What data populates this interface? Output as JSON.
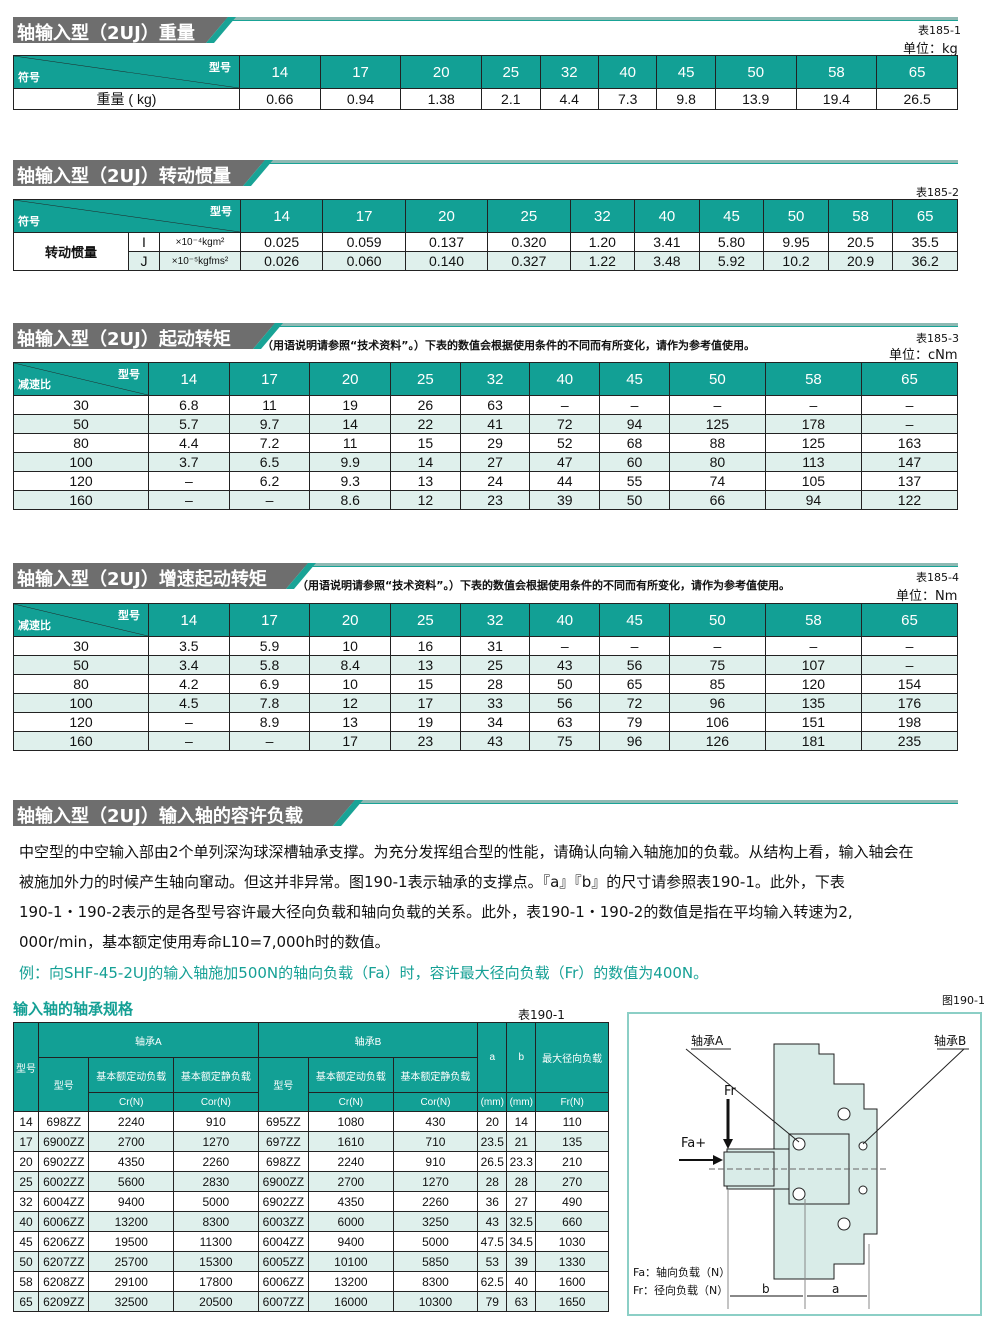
{
  "colors": {
    "accent": "#12a095",
    "header_gray": "#6e6e6e",
    "stripe": "#dff0ec"
  },
  "models": [
    "14",
    "17",
    "20",
    "25",
    "32",
    "40",
    "45",
    "50",
    "58",
    "65"
  ],
  "weight": {
    "title": "轴输入型（2UJ）重量",
    "table_no": "表185-1",
    "unit": "单位：kg",
    "corner_top": "型号",
    "corner_bottom": "符号",
    "row_label": "重量 ( kg)",
    "values": [
      "0.66",
      "0.94",
      "1.38",
      "2.1",
      "4.4",
      "7.3",
      "9.8",
      "13.9",
      "19.4",
      "26.5"
    ]
  },
  "inertia": {
    "title": "轴输入型（2UJ）转动惯量",
    "table_no": "表185-2",
    "corner_top": "型号",
    "corner_bottom": "符号",
    "row_label": "转动惯量",
    "rows": [
      {
        "sym": "I",
        "unit": "×10⁻⁴kgm²",
        "values": [
          "0.025",
          "0.059",
          "0.137",
          "0.320",
          "1.20",
          "3.41",
          "5.80",
          "9.95",
          "20.5",
          "35.5"
        ]
      },
      {
        "sym": "J",
        "unit": "×10⁻⁵kgfms²",
        "values": [
          "0.026",
          "0.060",
          "0.140",
          "0.327",
          "1.22",
          "3.48",
          "5.92",
          "10.2",
          "20.9",
          "36.2"
        ]
      }
    ]
  },
  "start": {
    "title": "轴输入型（2UJ）起动转矩",
    "note": "（用语说明请参照“技术资料”。）下表的数值会根据使用条件的不同而有所变化，请作为参考值使用。",
    "table_no": "表185-3",
    "unit": "单位：cNm",
    "corner_top": "型号",
    "corner_bottom": "减速比",
    "rows": [
      [
        "30",
        "6.8",
        "11",
        "19",
        "26",
        "63",
        "–",
        "–",
        "–",
        "–",
        "–"
      ],
      [
        "50",
        "5.7",
        "9.7",
        "14",
        "22",
        "41",
        "72",
        "94",
        "125",
        "178",
        "–"
      ],
      [
        "80",
        "4.4",
        "7.2",
        "11",
        "15",
        "29",
        "52",
        "68",
        "88",
        "125",
        "163"
      ],
      [
        "100",
        "3.7",
        "6.5",
        "9.9",
        "14",
        "27",
        "47",
        "60",
        "80",
        "113",
        "147"
      ],
      [
        "120",
        "–",
        "6.2",
        "9.3",
        "13",
        "24",
        "44",
        "55",
        "74",
        "105",
        "137"
      ],
      [
        "160",
        "–",
        "–",
        "8.6",
        "12",
        "23",
        "39",
        "50",
        "66",
        "94",
        "122"
      ]
    ]
  },
  "backdrive": {
    "title": "轴输入型（2UJ）增速起动转矩",
    "note": "（用语说明请参照“技术资料”。）下表的数值会根据使用条件的不同而有所变化，请作为参考值使用。",
    "table_no": "表185-4",
    "unit": "单位：Nm",
    "corner_top": "型号",
    "corner_bottom": "减速比",
    "rows": [
      [
        "30",
        "3.5",
        "5.9",
        "10",
        "16",
        "31",
        "–",
        "–",
        "–",
        "–",
        "–"
      ],
      [
        "50",
        "3.4",
        "5.8",
        "8.4",
        "13",
        "25",
        "43",
        "56",
        "75",
        "107",
        "–"
      ],
      [
        "80",
        "4.2",
        "6.9",
        "10",
        "15",
        "28",
        "50",
        "65",
        "85",
        "120",
        "154"
      ],
      [
        "100",
        "4.5",
        "7.8",
        "12",
        "17",
        "33",
        "56",
        "72",
        "96",
        "135",
        "176"
      ],
      [
        "120",
        "–",
        "8.9",
        "13",
        "19",
        "34",
        "63",
        "79",
        "106",
        "151",
        "198"
      ],
      [
        "160",
        "–",
        "–",
        "17",
        "23",
        "43",
        "75",
        "96",
        "126",
        "181",
        "235"
      ]
    ]
  },
  "load": {
    "title": "轴输入型（2UJ）输入轴的容许负载",
    "paragraph": [
      "中空型的中空输入部由2个单列深沟球深槽轴承支撑。为充分发挥组合型的性能，请确认向输入轴施加的负载。从结构上看，输入轴会在",
      "被施加外力的时候产生轴向窜动。但这并非异常。图190-1表示轴承的支撑点。『a』『b』的尺寸请参照表190-1。此外，下表",
      "190-1・190-2表示的是各型号容许最大径向负载和轴向负载的关系。此外，表190-1・190-2的数值是指在平均输入转速为2,",
      "000r/min，基本额定使用寿命L10=7,000h时的数值。"
    ],
    "example": "例：向SHF-45-2UJ的输入轴施加500N的轴向负载（Fa）时，容许最大径向负载（Fr）的数值为400N。",
    "subtitle": "输入轴的轴承规格",
    "table_no": "表190-1",
    "headers": {
      "model": "型号",
      "bearing_a": "轴承A",
      "bearing_b": "轴承B",
      "type": "型号",
      "dyn": "基本额定动负载",
      "stat": "基本额定静负载",
      "cr": "Cr(N)",
      "cor": "Cor(N)",
      "a": "a",
      "b": "b",
      "mm": "(mm)",
      "maxr": "最大径向负载",
      "fr": "Fr(N)"
    },
    "rows": [
      [
        "14",
        "698ZZ",
        "2240",
        "910",
        "695ZZ",
        "1080",
        "430",
        "20",
        "14",
        "110"
      ],
      [
        "17",
        "6900ZZ",
        "2700",
        "1270",
        "697ZZ",
        "1610",
        "710",
        "23.5",
        "21",
        "135"
      ],
      [
        "20",
        "6902ZZ",
        "4350",
        "2260",
        "698ZZ",
        "2240",
        "910",
        "26.5",
        "23.3",
        "210"
      ],
      [
        "25",
        "6002ZZ",
        "5600",
        "2830",
        "6900ZZ",
        "2700",
        "1270",
        "28",
        "28",
        "270"
      ],
      [
        "32",
        "6004ZZ",
        "9400",
        "5000",
        "6902ZZ",
        "4350",
        "2260",
        "36",
        "27",
        "490"
      ],
      [
        "40",
        "6006ZZ",
        "13200",
        "8300",
        "6003ZZ",
        "6000",
        "3250",
        "43",
        "32.5",
        "660"
      ],
      [
        "45",
        "6206ZZ",
        "19500",
        "11300",
        "6004ZZ",
        "9400",
        "5000",
        "47.5",
        "34.5",
        "1030"
      ],
      [
        "50",
        "6207ZZ",
        "25700",
        "15300",
        "6005ZZ",
        "10100",
        "5850",
        "53",
        "39",
        "1330"
      ],
      [
        "58",
        "6208ZZ",
        "29100",
        "17800",
        "6006ZZ",
        "13200",
        "8300",
        "62.5",
        "40",
        "1600"
      ],
      [
        "65",
        "6209ZZ",
        "32500",
        "20500",
        "6007ZZ",
        "16000",
        "10300",
        "79",
        "63",
        "1650"
      ]
    ],
    "figure": {
      "no": "图190-1",
      "bearing_a": "轴承A",
      "bearing_b": "轴承B",
      "fr": "Fr",
      "fa": "Fa+",
      "legend_fa": "Fa：轴向负载（N）",
      "legend_fr": "Fr：径向负载（N）",
      "dim_a": "a",
      "dim_b": "b"
    }
  }
}
